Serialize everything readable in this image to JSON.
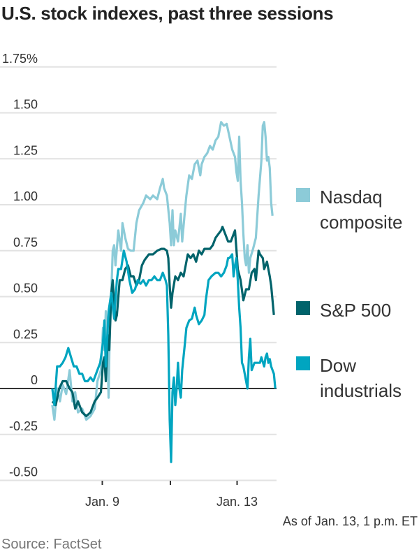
{
  "title": "U.S. stock indexes, past three sessions",
  "note": "As of Jan. 13, 1 p.m. ET",
  "source": "Source: FactSet",
  "chart_data": {
    "type": "line",
    "title": "U.S. stock indexes, past three sessions",
    "ylim": [
      -0.5,
      1.75
    ],
    "y_ticks": [
      {
        "value": 1.75,
        "label": "1.75%"
      },
      {
        "value": 1.5,
        "label": "1.50"
      },
      {
        "value": 1.25,
        "label": "1.25"
      },
      {
        "value": 1.0,
        "label": "1.00"
      },
      {
        "value": 0.75,
        "label": "0.75"
      },
      {
        "value": 0.5,
        "label": "0.50"
      },
      {
        "value": 0.25,
        "label": "0.25"
      },
      {
        "value": 0,
        "label": "0"
      },
      {
        "value": -0.25,
        "label": "-0.25"
      },
      {
        "value": -0.5,
        "label": "-0.50"
      }
    ],
    "x_ticks": [
      {
        "x": 388,
        "label": "Jan. 9"
      },
      {
        "x": 780,
        "label": ""
      },
      {
        "x": 1164,
        "label": "Jan. 13"
      }
    ],
    "grid": true,
    "legend_placement": "right",
    "series": [
      {
        "name": "Nasdaq composite",
        "color": "#8ccbd8",
        "x": [
          100,
          112,
          128,
          144,
          160,
          180,
          200,
          216,
          232,
          248,
          272,
          296,
          320,
          344,
          360,
          380,
          392,
          400,
          408,
          416,
          424,
          432,
          440,
          448,
          456,
          464,
          480,
          496,
          504,
          520,
          536,
          552,
          568,
          584,
          600,
          624,
          640,
          664,
          680,
          704,
          720,
          736,
          744,
          760,
          776,
          784,
          792,
          800,
          808,
          824,
          840,
          848,
          864,
          872,
          888,
          904,
          920,
          936,
          952,
          960,
          976,
          992,
          1008,
          1024,
          1040,
          1056,
          1072,
          1088,
          1104,
          1120,
          1136,
          1152,
          1160,
          1168,
          1176,
          1184,
          1192,
          1200,
          1208,
          1216,
          1224,
          1232,
          1240,
          1256,
          1272,
          1288,
          1304,
          1312,
          1320,
          1328,
          1336,
          1344,
          1352,
          1360,
          1368
        ],
        "y": [
          -0.09,
          -0.17,
          0.0,
          -0.07,
          0.02,
          -0.03,
          0.1,
          -0.07,
          -0.02,
          -0.13,
          -0.11,
          -0.17,
          -0.15,
          -0.11,
          0.04,
          0.1,
          0.33,
          0.21,
          0.42,
          0.25,
          -0.05,
          0.37,
          0.52,
          0.75,
          0.78,
          0.67,
          0.86,
          0.75,
          0.9,
          0.82,
          0.76,
          0.75,
          0.75,
          0.9,
          0.97,
          1.01,
          1.05,
          1.03,
          1.05,
          1.03,
          1.09,
          1.14,
          1.09,
          1.05,
          0.9,
          0.78,
          0.97,
          0.78,
          0.86,
          0.8,
          0.95,
          0.8,
          0.97,
          1.05,
          1.16,
          1.14,
          1.22,
          1.24,
          1.16,
          1.22,
          1.26,
          1.28,
          1.32,
          1.3,
          1.35,
          1.37,
          1.45,
          1.43,
          1.44,
          1.37,
          1.3,
          1.26,
          1.18,
          1.13,
          1.37,
          1.13,
          1.01,
          0.84,
          0.71,
          0.67,
          0.78,
          0.63,
          0.71,
          0.76,
          0.82,
          1.05,
          1.24,
          1.43,
          1.45,
          1.37,
          1.24,
          1.26,
          1.2,
          1.01,
          0.94
        ]
      },
      {
        "name": "S&P 500",
        "color": "#00636b",
        "x": [
          100,
          120,
          140,
          160,
          180,
          200,
          216,
          232,
          248,
          272,
          296,
          320,
          344,
          360,
          380,
          392,
          400,
          408,
          420,
          428,
          440,
          448,
          464,
          472,
          488,
          504,
          520,
          536,
          552,
          568,
          584,
          600,
          616,
          632,
          656,
          680,
          704,
          728,
          744,
          760,
          768,
          776,
          784,
          792,
          808,
          824,
          840,
          856,
          872,
          880,
          896,
          912,
          928,
          944,
          960,
          976,
          992,
          1008,
          1024,
          1040,
          1056,
          1072,
          1080,
          1096,
          1112,
          1128,
          1136,
          1152,
          1160,
          1168,
          1184,
          1200,
          1216,
          1232,
          1248,
          1264,
          1272,
          1288,
          1296,
          1312,
          1320,
          1336,
          1352,
          1360,
          1376
        ],
        "y": [
          -0.07,
          -0.09,
          0.0,
          0.04,
          0.04,
          0.0,
          -0.02,
          -0.11,
          -0.07,
          -0.13,
          -0.15,
          -0.13,
          -0.07,
          -0.05,
          -0.02,
          0.14,
          0.17,
          0.04,
          0.29,
          0.21,
          0.52,
          0.59,
          0.37,
          0.4,
          0.59,
          0.59,
          0.65,
          0.67,
          0.61,
          0.61,
          0.56,
          0.59,
          0.67,
          0.7,
          0.73,
          0.73,
          0.75,
          0.76,
          0.76,
          0.75,
          0.71,
          0.56,
          0.44,
          0.52,
          0.61,
          0.59,
          0.63,
          0.61,
          0.69,
          0.73,
          0.71,
          0.73,
          0.69,
          0.75,
          0.73,
          0.76,
          0.76,
          0.76,
          0.78,
          0.82,
          0.84,
          0.86,
          0.88,
          0.84,
          0.8,
          0.8,
          0.82,
          0.86,
          0.76,
          0.65,
          0.59,
          0.48,
          0.54,
          0.54,
          0.63,
          0.65,
          0.59,
          0.75,
          0.73,
          0.71,
          0.65,
          0.69,
          0.61,
          0.56,
          0.4
        ]
      },
      {
        "name": "Dow industrials",
        "color": "#00a5c0",
        "x": [
          100,
          112,
          128,
          144,
          160,
          176,
          192,
          208,
          224,
          240,
          256,
          272,
          288,
          304,
          320,
          336,
          360,
          376,
          392,
          400,
          408,
          424,
          440,
          456,
          472,
          480,
          496,
          512,
          528,
          544,
          560,
          576,
          592,
          608,
          624,
          640,
          656,
          672,
          688,
          704,
          720,
          736,
          752,
          760,
          768,
          776,
          784,
          792,
          800,
          808,
          816,
          824,
          832,
          840,
          848,
          864,
          872,
          888,
          904,
          920,
          928,
          944,
          960,
          976,
          984,
          1000,
          1016,
          1040,
          1056,
          1072,
          1088,
          1104,
          1112,
          1120,
          1136,
          1144,
          1152,
          1160,
          1168,
          1176,
          1184,
          1192,
          1200,
          1216,
          1224,
          1232,
          1240,
          1248,
          1264,
          1280,
          1296,
          1304,
          1320,
          1328,
          1336,
          1344,
          1352,
          1360,
          1376,
          1384
        ],
        "y": [
          0.0,
          -0.09,
          0.12,
          0.12,
          0.14,
          0.17,
          0.22,
          0.17,
          0.12,
          0.12,
          0.08,
          0.08,
          0.04,
          0.04,
          0.06,
          0.04,
          0.1,
          0.14,
          0.25,
          0.37,
          0.12,
          0.42,
          0.52,
          0.38,
          0.59,
          0.65,
          0.65,
          0.75,
          0.69,
          0.59,
          0.52,
          0.54,
          0.59,
          0.57,
          0.59,
          0.56,
          0.59,
          0.59,
          0.61,
          0.59,
          0.59,
          0.63,
          0.59,
          0.56,
          0.29,
          -0.17,
          -0.4,
          -0.02,
          0.06,
          -0.09,
          0.0,
          0.14,
          0.0,
          -0.05,
          0.1,
          0.25,
          0.33,
          0.37,
          0.38,
          0.44,
          0.4,
          0.35,
          0.37,
          0.4,
          0.48,
          0.59,
          0.61,
          0.63,
          0.63,
          0.61,
          0.63,
          0.67,
          0.71,
          0.71,
          0.73,
          0.61,
          0.67,
          0.71,
          0.59,
          0.44,
          0.33,
          0.14,
          0.12,
          0.04,
          0.0,
          0.17,
          0.27,
          0.1,
          0.14,
          0.14,
          0.14,
          0.17,
          0.12,
          0.17,
          0.19,
          0.14,
          0.16,
          0.12,
          0.08,
          0.0
        ]
      }
    ]
  },
  "legend": [
    {
      "label": "Nasdaq composite",
      "color": "#8ccbd8"
    },
    {
      "label": "S&P 500",
      "color": "#00636b"
    },
    {
      "label": "Dow industrials",
      "color": "#00a5c0"
    }
  ]
}
